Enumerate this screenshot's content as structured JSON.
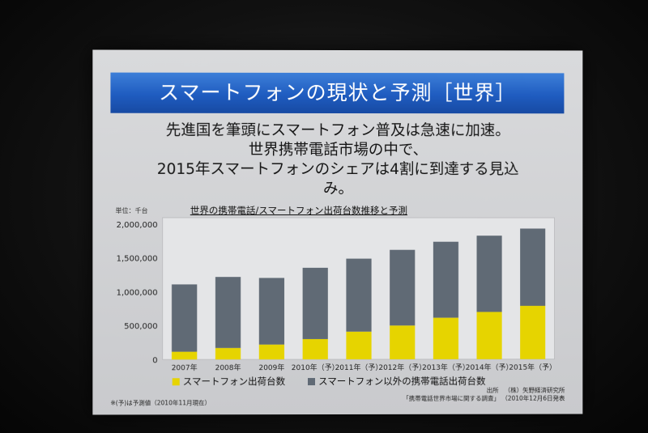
{
  "slide": {
    "title": "スマートフォンの現状と予測［世界］",
    "headline_lines": [
      "先進国を筆頭にスマートフォン普及は急速に加速。",
      "世界携帯電話市場の中で、",
      "2015年スマートフォンのシェアは4割に到達する見込",
      "み。"
    ],
    "unit": "単位：千台",
    "note": "※(予)は予測値（2010年11月現在）",
    "source_label": "出所",
    "source_org": "（株）矢野経済研究所",
    "source_title": "「携帯電話世界市場に関する調査」",
    "source_date": "（2010年12月6日発表"
  },
  "colors": {
    "smartphone": "#e6d400",
    "other": "#606a75",
    "title_bar": "#1f5cc0"
  },
  "chart_data": {
    "type": "bar",
    "stacked": true,
    "title": "世界の携帯電話/スマートフォン出荷台数推移と予測",
    "categories": [
      "2007年",
      "2008年",
      "2009年",
      "2010年（予）",
      "2011年（予）",
      "2012年（予）",
      "2013年（予）",
      "2014年（予）",
      "2015年（予）"
    ],
    "series": [
      {
        "name": "スマートフォン出荷台数",
        "values": [
          115000,
          170000,
          220000,
          300000,
          410000,
          500000,
          615000,
          700000,
          790000
        ]
      },
      {
        "name": "スマートフォン以外の携帯電話出荷台数",
        "values": [
          995000,
          1050000,
          985000,
          1055000,
          1080000,
          1120000,
          1125000,
          1130000,
          1145000
        ]
      }
    ],
    "yticks": [
      "0",
      "500,000",
      "1,000,000",
      "1,500,000",
      "2,000,000"
    ],
    "ylim": [
      0,
      2000000
    ],
    "grid": false,
    "legend": "bottom"
  }
}
